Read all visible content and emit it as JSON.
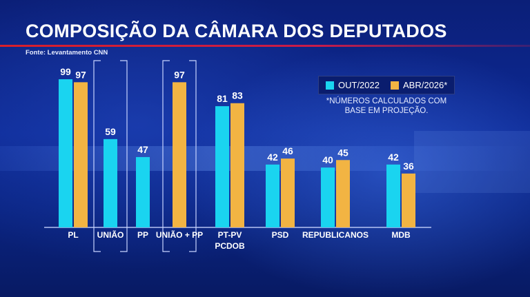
{
  "header": {
    "title": "COMPOSIÇÃO DA CÂMARA DOS DEPUTADOS",
    "source": "Fonte: Levantamento CNN"
  },
  "note": "*NÚMEROS CALCULADOS COM BASE EM PROJEÇÃO.",
  "colors": {
    "series1": "#1ad4f0",
    "series2": "#f2b443",
    "bracket": "#c8d4ff",
    "baseline": "#c8d4ff"
  },
  "chart_data": {
    "type": "bar",
    "title": "COMPOSIÇÃO DA CÂMARA DOS DEPUTADOS",
    "xlabel": "",
    "ylabel": "",
    "ylim": [
      0,
      100
    ],
    "grid": false,
    "legend_position": "top-right",
    "categories": [
      [
        "PL"
      ],
      [
        "UNIÃO"
      ],
      [
        "PP"
      ],
      [
        "UNIÃO + PP"
      ],
      [
        "PT-PV",
        "PCDOB"
      ],
      [
        "PSD"
      ],
      [
        "REPUBLICANOS"
      ],
      [
        "MDB"
      ]
    ],
    "series": [
      {
        "name": "OUT/2022",
        "values": [
          99,
          59,
          47,
          null,
          81,
          42,
          40,
          42
        ]
      },
      {
        "name": "ABR/2026*",
        "values": [
          97,
          null,
          null,
          97,
          83,
          46,
          45,
          36
        ]
      }
    ],
    "bracketed_categories": [
      1,
      3
    ]
  }
}
